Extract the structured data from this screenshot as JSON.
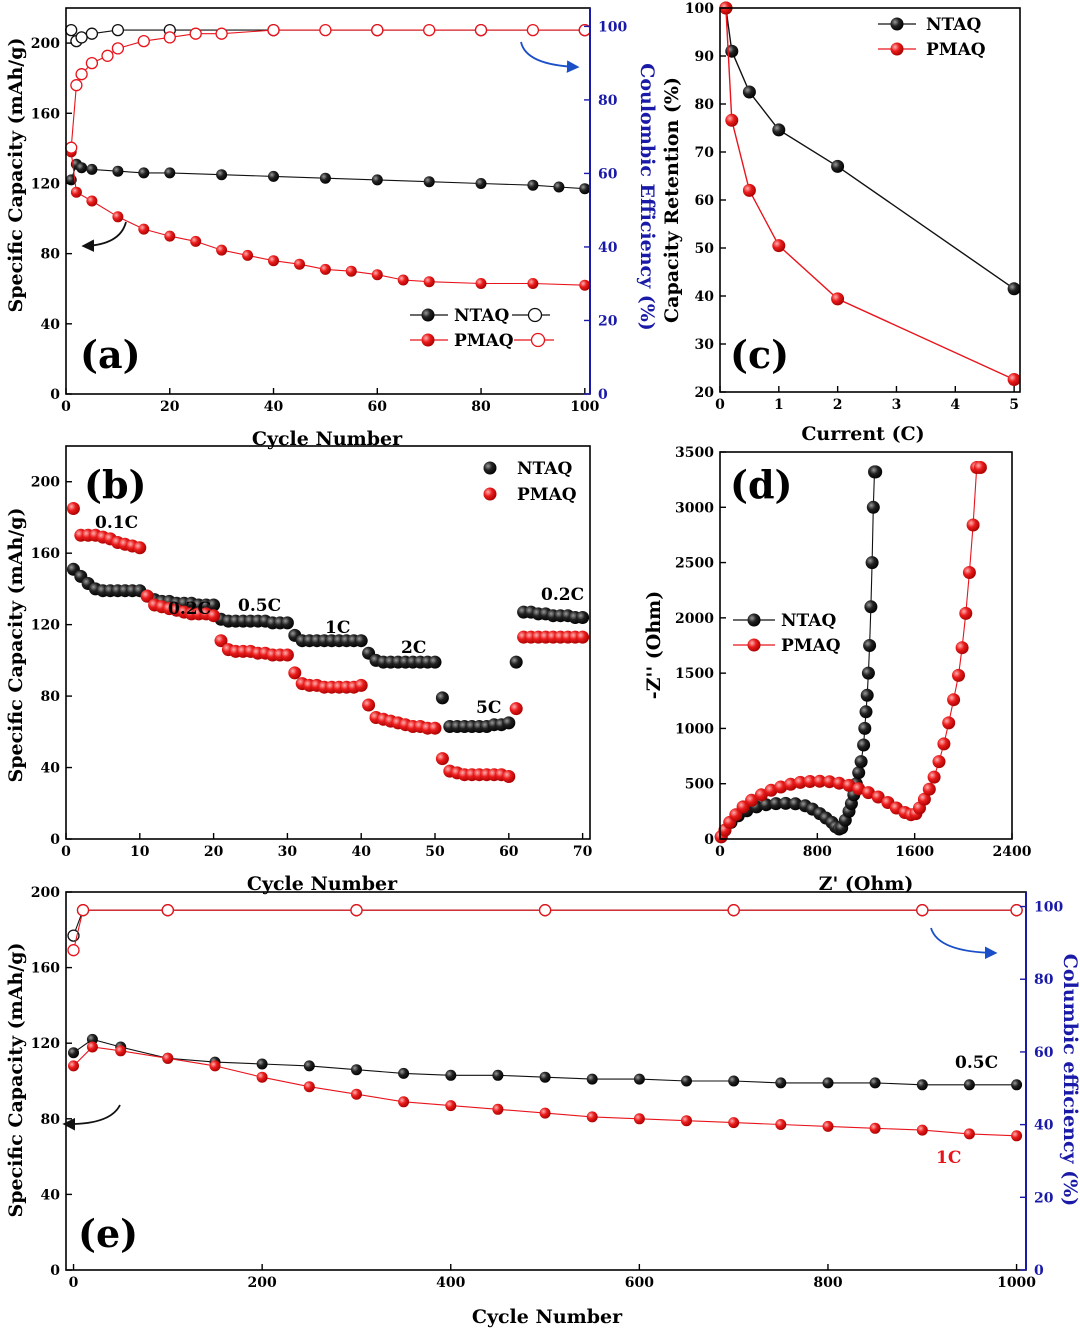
{
  "colors": {
    "ntaq": "#111111",
    "pmaq": "#e8141c",
    "efficiency_axis": "#1a1aa8",
    "arrow": "#1a4fc8"
  },
  "chart_data": [
    {
      "id": "a",
      "type": "line",
      "panel_label": "(a)",
      "xlabel": "Cycle Number",
      "ylabel": "Specific Capacity (mAh/g)",
      "y2label": "Coulombic Efficiency (%)",
      "xlim": [
        0,
        101
      ],
      "ylim": [
        0,
        220
      ],
      "y2lim": [
        0,
        105
      ],
      "xticks": [
        0,
        20,
        40,
        60,
        80,
        100
      ],
      "yticks": [
        0,
        40,
        80,
        120,
        160,
        200
      ],
      "y2ticks": [
        0,
        20,
        40,
        60,
        80,
        100
      ],
      "legend": [
        "NTAQ",
        "PMAQ"
      ],
      "series": [
        {
          "name": "NTAQ capacity",
          "axis": "left",
          "marker": "filled",
          "color": "black",
          "x": [
            1,
            2,
            3,
            5,
            10,
            15,
            20,
            30,
            40,
            50,
            60,
            70,
            80,
            90,
            95,
            100
          ],
          "y": [
            122,
            131,
            129,
            128,
            127,
            126,
            126,
            125,
            124,
            123,
            122,
            121,
            120,
            119,
            118,
            117
          ]
        },
        {
          "name": "PMAQ capacity",
          "axis": "left",
          "marker": "filled",
          "color": "red",
          "x": [
            1,
            2,
            5,
            10,
            15,
            20,
            25,
            30,
            35,
            40,
            45,
            50,
            55,
            60,
            65,
            70,
            80,
            90,
            100
          ],
          "y": [
            138,
            115,
            110,
            101,
            94,
            90,
            87,
            82,
            79,
            76,
            74,
            71,
            70,
            68,
            65,
            64,
            63,
            63,
            62
          ]
        },
        {
          "name": "NTAQ efficiency",
          "axis": "right",
          "marker": "open",
          "color": "black",
          "x": [
            1,
            2,
            3,
            5,
            10,
            20,
            40,
            60,
            80,
            100
          ],
          "y": [
            99,
            96,
            97,
            98,
            99,
            99,
            99,
            99,
            99,
            99
          ]
        },
        {
          "name": "PMAQ efficiency",
          "axis": "right",
          "marker": "open",
          "color": "red",
          "x": [
            1,
            2,
            3,
            5,
            8,
            10,
            15,
            20,
            25,
            30,
            40,
            50,
            60,
            70,
            80,
            90,
            100
          ],
          "y": [
            67,
            84,
            87,
            90,
            92,
            94,
            96,
            97,
            98,
            98,
            99,
            99,
            99,
            99,
            99,
            99,
            99
          ]
        }
      ]
    },
    {
      "id": "b",
      "type": "scatter",
      "panel_label": "(b)",
      "xlabel": "Cycle Number",
      "ylabel": "Specific Capacity (mAh/g)",
      "xlim": [
        0,
        71
      ],
      "ylim": [
        0,
        220
      ],
      "xticks": [
        0,
        10,
        20,
        30,
        40,
        50,
        60,
        70
      ],
      "yticks": [
        0,
        40,
        80,
        120,
        160,
        200
      ],
      "legend": [
        "NTAQ",
        "PMAQ"
      ],
      "annotations": [
        "0.1C",
        "0.2C",
        "0.5C",
        "1C",
        "2C",
        "5C",
        "0.2C"
      ],
      "series": [
        {
          "name": "NTAQ",
          "color": "black",
          "x": [
            1,
            2,
            3,
            4,
            5,
            6,
            7,
            8,
            9,
            10,
            11,
            12,
            13,
            14,
            15,
            16,
            17,
            18,
            19,
            20,
            21,
            22,
            23,
            24,
            25,
            26,
            27,
            28,
            29,
            30,
            31,
            32,
            33,
            34,
            35,
            36,
            37,
            38,
            39,
            40,
            41,
            42,
            43,
            44,
            45,
            46,
            47,
            48,
            49,
            50,
            51,
            52,
            53,
            54,
            55,
            56,
            57,
            58,
            59,
            60,
            61,
            62,
            63,
            64,
            65,
            66,
            67,
            68,
            69,
            70
          ],
          "y": [
            151,
            147,
            143,
            140,
            139,
            139,
            139,
            139,
            139,
            139,
            136,
            134,
            133,
            133,
            132,
            132,
            132,
            131,
            131,
            131,
            123,
            122,
            122,
            122,
            122,
            122,
            122,
            121,
            121,
            121,
            114,
            111,
            111,
            111,
            111,
            111,
            111,
            111,
            111,
            111,
            104,
            100,
            99,
            99,
            99,
            99,
            99,
            99,
            99,
            99,
            79,
            63,
            63,
            63,
            63,
            63,
            63,
            64,
            64,
            65,
            99,
            127,
            127,
            126,
            126,
            125,
            125,
            125,
            124,
            124
          ]
        },
        {
          "name": "PMAQ",
          "color": "red",
          "x": [
            1,
            2,
            3,
            4,
            5,
            6,
            7,
            8,
            9,
            10,
            11,
            12,
            13,
            14,
            15,
            16,
            17,
            18,
            19,
            20,
            21,
            22,
            23,
            24,
            25,
            26,
            27,
            28,
            29,
            30,
            31,
            32,
            33,
            34,
            35,
            36,
            37,
            38,
            39,
            40,
            41,
            42,
            43,
            44,
            45,
            46,
            47,
            48,
            49,
            50,
            51,
            52,
            53,
            54,
            55,
            56,
            57,
            58,
            59,
            60,
            61,
            62,
            63,
            64,
            65,
            66,
            67,
            68,
            69,
            70
          ],
          "y": [
            185,
            170,
            170,
            170,
            169,
            168,
            166,
            165,
            164,
            163,
            136,
            131,
            130,
            129,
            128,
            127,
            126,
            126,
            126,
            125,
            111,
            106,
            105,
            105,
            105,
            104,
            104,
            103,
            103,
            103,
            93,
            87,
            86,
            86,
            85,
            85,
            85,
            85,
            85,
            86,
            75,
            68,
            67,
            66,
            65,
            64,
            63,
            63,
            62,
            62,
            45,
            38,
            37,
            36,
            36,
            36,
            36,
            36,
            36,
            35,
            73,
            113,
            113,
            113,
            113,
            113,
            113,
            113,
            113,
            113
          ]
        }
      ]
    },
    {
      "id": "c",
      "type": "line",
      "panel_label": "(c)",
      "xlabel": "Current (C)",
      "ylabel": "Capacity Retention (%)",
      "xlim": [
        0,
        5.1
      ],
      "ylim": [
        20,
        100
      ],
      "xticks": [
        0,
        1,
        2,
        3,
        4,
        5
      ],
      "yticks": [
        20,
        30,
        40,
        50,
        60,
        70,
        80,
        90,
        100
      ],
      "legend": [
        "NTAQ",
        "PMAQ"
      ],
      "series": [
        {
          "name": "NTAQ",
          "color": "black",
          "x": [
            0.1,
            0.2,
            0.5,
            1,
            2,
            5
          ],
          "y": [
            100,
            91,
            82.5,
            74.6,
            67,
            41.5
          ]
        },
        {
          "name": "PMAQ",
          "color": "red",
          "x": [
            0.1,
            0.2,
            0.5,
            1,
            2,
            5
          ],
          "y": [
            100,
            76.6,
            62,
            50.5,
            39.4,
            22.6
          ]
        }
      ]
    },
    {
      "id": "d",
      "type": "scatter",
      "panel_label": "(d)",
      "xlabel": "Z' (Ohm)",
      "ylabel": "-Z'' (Ohm)",
      "xlim": [
        0,
        2400
      ],
      "ylim": [
        0,
        3500
      ],
      "xticks": [
        0,
        800,
        1600,
        2400
      ],
      "yticks": [
        0,
        500,
        1000,
        1500,
        2000,
        2500,
        3000,
        3500
      ],
      "legend": [
        "NTAQ",
        "PMAQ"
      ],
      "series": [
        {
          "name": "NTAQ",
          "color": "black",
          "x": [
            10,
            40,
            90,
            150,
            220,
            300,
            380,
            460,
            540,
            620,
            700,
            760,
            820,
            870,
            920,
            950,
            980,
            1000,
            1030,
            1060,
            1080,
            1100,
            1120,
            1140,
            1160,
            1180,
            1190,
            1200,
            1210,
            1220,
            1230,
            1240,
            1250,
            1260,
            1270,
            1280
          ],
          "y": [
            20,
            80,
            150,
            210,
            255,
            290,
            310,
            320,
            322,
            318,
            300,
            270,
            230,
            190,
            150,
            110,
            90,
            100,
            170,
            250,
            320,
            400,
            500,
            600,
            700,
            850,
            1000,
            1150,
            1300,
            1500,
            1750,
            2100,
            2500,
            3000,
            3320,
            3320
          ]
        },
        {
          "name": "PMAQ",
          "color": "red",
          "x": [
            10,
            40,
            80,
            130,
            190,
            260,
            340,
            420,
            500,
            580,
            660,
            740,
            820,
            900,
            980,
            1060,
            1140,
            1220,
            1300,
            1380,
            1450,
            1520,
            1570,
            1610,
            1640,
            1680,
            1720,
            1760,
            1800,
            1840,
            1880,
            1920,
            1960,
            1990,
            2020,
            2050,
            2080,
            2110,
            2140
          ],
          "y": [
            20,
            80,
            150,
            220,
            290,
            350,
            400,
            440,
            470,
            495,
            512,
            520,
            522,
            518,
            505,
            485,
            455,
            420,
            380,
            330,
            280,
            240,
            220,
            230,
            280,
            360,
            450,
            560,
            700,
            860,
            1050,
            1260,
            1480,
            1730,
            2040,
            2410,
            2840,
            3360,
            3360
          ]
        }
      ]
    },
    {
      "id": "e",
      "type": "line",
      "panel_label": "(e)",
      "xlabel": "Cycle Number",
      "ylabel": "Specific Capacity (mAh/g)",
      "y2label": "Columbic efficiency (%)",
      "xlim": [
        -8,
        1010
      ],
      "ylim": [
        0,
        200
      ],
      "y2lim": [
        0,
        104
      ],
      "xticks": [
        0,
        200,
        400,
        600,
        800,
        1000
      ],
      "yticks": [
        0,
        40,
        80,
        120,
        160,
        200
      ],
      "y2ticks": [
        0,
        20,
        40,
        60,
        80,
        100
      ],
      "annotations": [
        "0.5C",
        "1C"
      ],
      "series": [
        {
          "name": "NTAQ 0.5C capacity",
          "axis": "left",
          "marker": "filled",
          "color": "black",
          "x": [
            0,
            20,
            50,
            100,
            150,
            200,
            250,
            300,
            350,
            400,
            450,
            500,
            550,
            600,
            650,
            700,
            750,
            800,
            850,
            900,
            950,
            1000
          ],
          "y": [
            115,
            122,
            118,
            112,
            110,
            109,
            108,
            106,
            104,
            103,
            103,
            102,
            101,
            101,
            100,
            100,
            99,
            99,
            99,
            98,
            98,
            98
          ]
        },
        {
          "name": "PMAQ 1C capacity",
          "axis": "left",
          "marker": "filled",
          "color": "red",
          "x": [
            0,
            20,
            50,
            100,
            150,
            200,
            250,
            300,
            350,
            400,
            450,
            500,
            550,
            600,
            650,
            700,
            750,
            800,
            850,
            900,
            950,
            1000
          ],
          "y": [
            108,
            118,
            116,
            112,
            108,
            102,
            97,
            93,
            89,
            87,
            85,
            83,
            81,
            80,
            79,
            78,
            77,
            76,
            75,
            74,
            72,
            71
          ]
        },
        {
          "name": "NTAQ efficiency",
          "axis": "right",
          "marker": "open",
          "color": "black",
          "x": [
            0,
            10,
            100,
            300,
            500,
            700,
            900,
            1000
          ],
          "y": [
            92,
            99,
            99,
            99,
            99,
            99,
            99,
            99
          ]
        },
        {
          "name": "PMAQ efficiency",
          "axis": "right",
          "marker": "open",
          "color": "red",
          "x": [
            0,
            10,
            100,
            300,
            500,
            700,
            900,
            1000
          ],
          "y": [
            88,
            99,
            99,
            99,
            99,
            99,
            99,
            99
          ]
        }
      ]
    }
  ]
}
